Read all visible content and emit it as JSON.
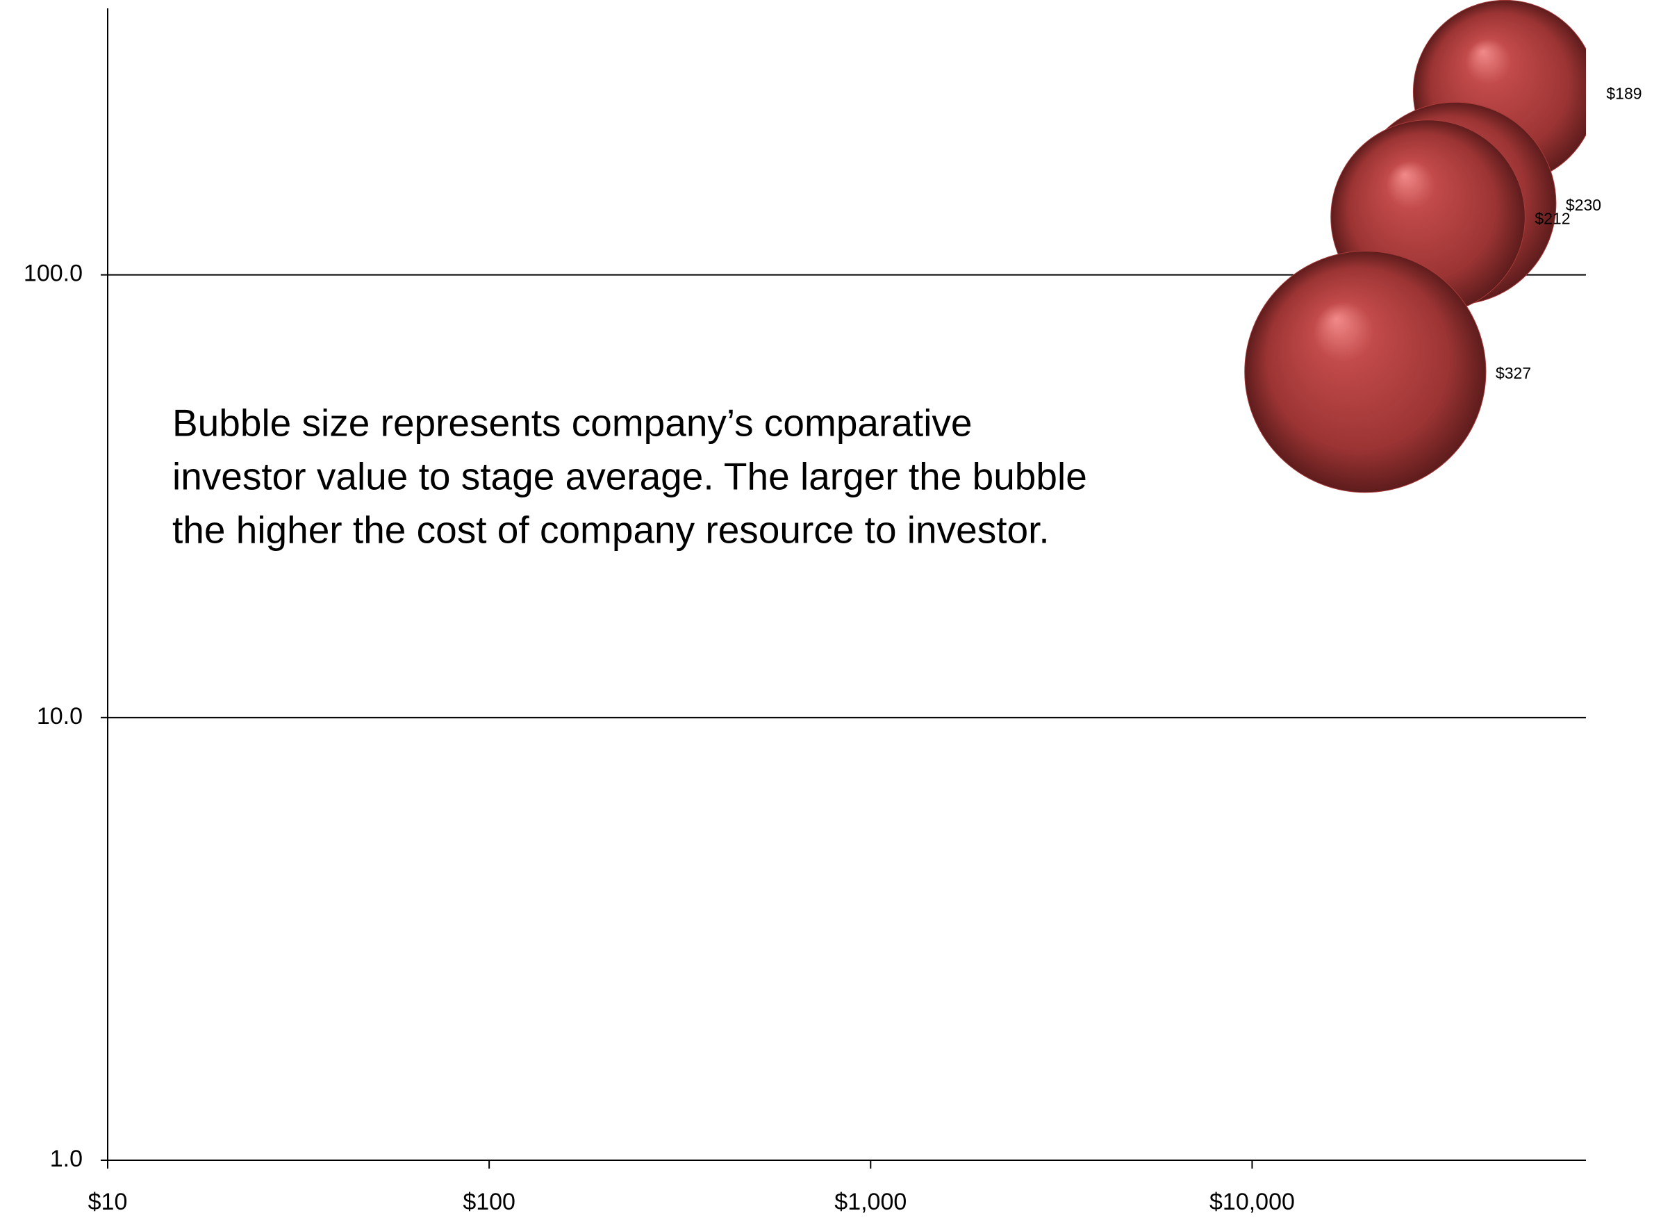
{
  "chart_data": {
    "type": "bubble",
    "annotation": [
      "Bubble size represents company’s comparative",
      "investor value to stage average.  The larger the bubble",
      "the higher the cost of company resource to investor."
    ],
    "x": [
      46000,
      34000,
      28900,
      19800
    ],
    "series": [
      {
        "color": "#a83a3a",
        "values": [
          259,
          145,
          135,
          60.4
        ],
        "sizes": [
          189,
          230,
          212,
          327
        ],
        "value_labels": [
          "$189",
          "$230",
          "$212",
          "$327"
        ]
      }
    ],
    "xscale": "log",
    "yscale": "log",
    "xlim": [
      10,
      75000
    ],
    "xticks": [
      {
        "value": 10,
        "label": "$10"
      },
      {
        "value": 100,
        "label": "$100"
      },
      {
        "value": 1000,
        "label": "$1,000"
      },
      {
        "value": 10000,
        "label": "$10,000"
      }
    ],
    "ylim": [
      1,
      400
    ],
    "yticks": [
      {
        "value": 1,
        "label": "1.0"
      },
      {
        "value": 10,
        "label": "10.0"
      },
      {
        "value": 100,
        "label": "100.0"
      }
    ],
    "grid": true
  }
}
